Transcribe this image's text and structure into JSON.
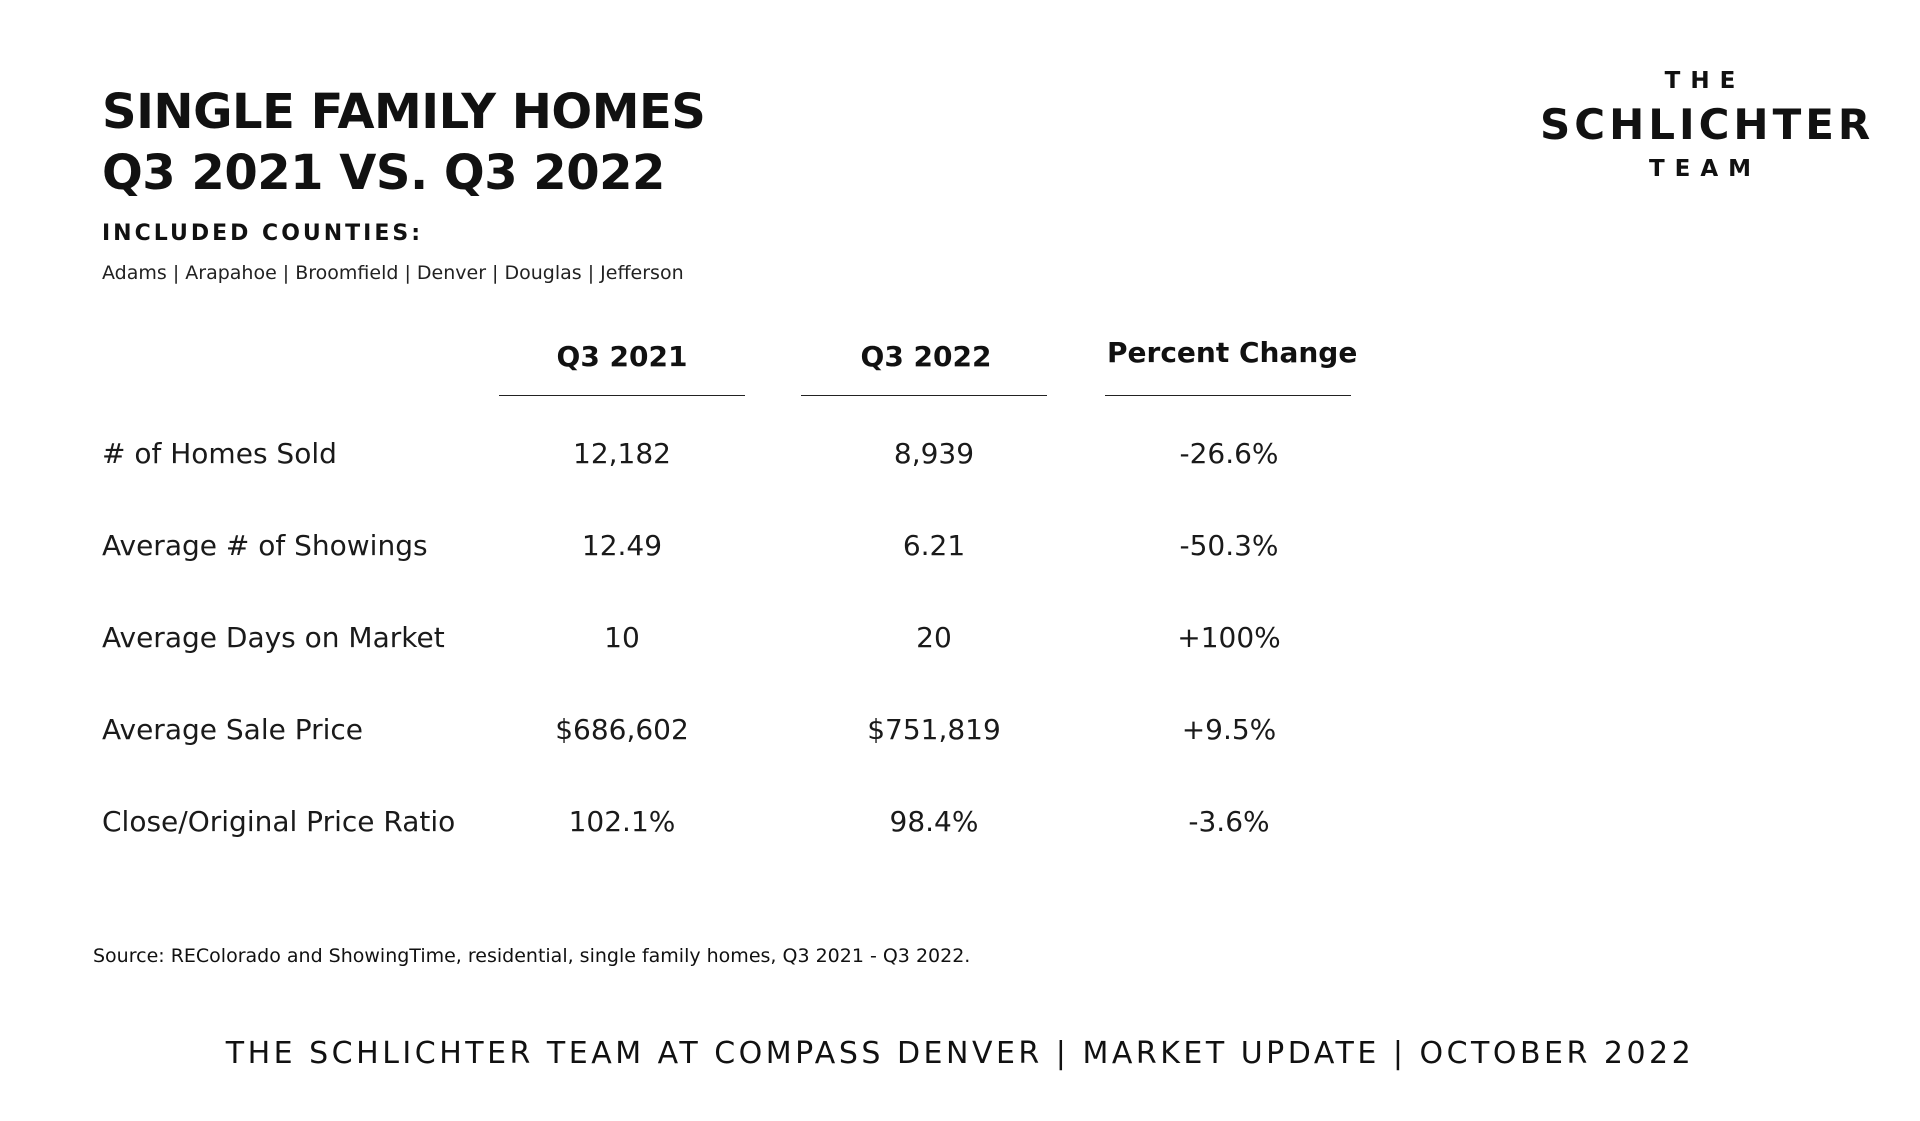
{
  "title": {
    "line1": "SINGLE FAMILY HOMES",
    "line2": "Q3 2021 VS. Q3 2022"
  },
  "counties": {
    "heading": "INCLUDED COUNTIES:",
    "list": "Adams | Arapahoe | Broomfield | Denver | Douglas | Jefferson"
  },
  "logo": {
    "top": "THE",
    "middle": "SCHLICHTER",
    "bottom": "TEAM"
  },
  "table": {
    "columns": [
      "Q3 2021",
      "Q3 2022",
      "Percent Change"
    ],
    "rows": [
      {
        "label": "# of Homes Sold",
        "values": [
          "12,182",
          "8,939",
          "-26.6%"
        ]
      },
      {
        "label": "Average # of Showings",
        "values": [
          "12.49",
          "6.21",
          "-50.3%"
        ]
      },
      {
        "label": "Average Days on Market",
        "values": [
          "10",
          "20",
          "+100%"
        ]
      },
      {
        "label": "Average Sale Price",
        "values": [
          "$686,602",
          "$751,819",
          "+9.5%"
        ]
      },
      {
        "label": "Close/Original Price Ratio",
        "values": [
          "102.1%",
          "98.4%",
          "-3.6%"
        ]
      }
    ]
  },
  "source": "Source: REColorado and ShowingTime, residential, single family homes, Q3 2021 - Q3 2022.",
  "footer": "THE SCHLICHTER TEAM AT COMPASS DENVER | MARKET UPDATE | OCTOBER 2022"
}
